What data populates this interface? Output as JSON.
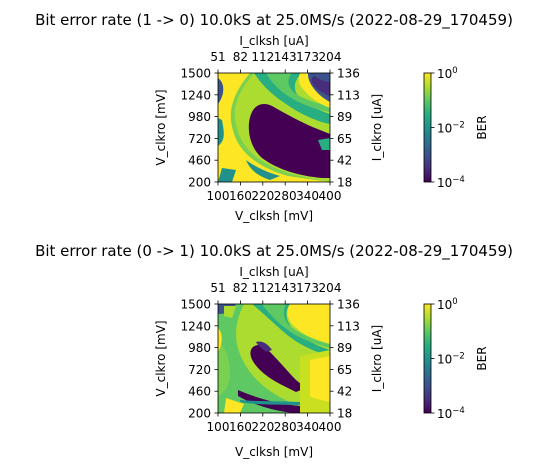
{
  "chart_data": [
    {
      "type": "heatmap",
      "title": "Bit error rate (1 -> 0) 10.0kS at 25.0MS/s (2022-08-29_170459)",
      "xlabel": "V_clksh [mV]",
      "ylabel": "V_clkro [mV]",
      "x2label": "I_clksh [uA]",
      "y2label": "I_clkro [uA]",
      "x_ticks": [
        "100",
        "160",
        "220",
        "280",
        "340",
        "400"
      ],
      "x2_ticks": [
        "51",
        "82",
        "112",
        "143",
        "173",
        "204"
      ],
      "y_ticks": [
        "200",
        "460",
        "720",
        "980",
        "1240",
        "1500"
      ],
      "y2_ticks": [
        "18",
        "42",
        "65",
        "89",
        "113",
        "136"
      ],
      "xlim": [
        100,
        400
      ],
      "ylim": [
        200,
        1500
      ],
      "colorbar": {
        "label": "BER",
        "scale": "log",
        "range": [
          0.0001,
          1
        ],
        "ticks": [
          {
            "base": "10",
            "exp": "0",
            "value": 1
          },
          {
            "base": "10",
            "exp": "−2",
            "value": 0.01
          },
          {
            "base": "10",
            "exp": "−4",
            "value": 0.0001
          }
        ]
      },
      "colormap": "viridis"
    },
    {
      "type": "heatmap",
      "title": "Bit error rate (0 -> 1) 10.0kS at 25.0MS/s (2022-08-29_170459)",
      "xlabel": "V_clksh [mV]",
      "ylabel": "V_clkro [mV]",
      "x2label": "I_clksh [uA]",
      "y2label": "I_clkro [uA]",
      "x_ticks": [
        "100",
        "160",
        "220",
        "280",
        "340",
        "400"
      ],
      "x2_ticks": [
        "51",
        "82",
        "112",
        "143",
        "173",
        "204"
      ],
      "y_ticks": [
        "200",
        "460",
        "720",
        "980",
        "1240",
        "1500"
      ],
      "y2_ticks": [
        "18",
        "42",
        "65",
        "89",
        "113",
        "136"
      ],
      "xlim": [
        100,
        400
      ],
      "ylim": [
        200,
        1500
      ],
      "colorbar": {
        "label": "BER",
        "scale": "log",
        "range": [
          0.0001,
          1
        ],
        "ticks": [
          {
            "base": "10",
            "exp": "0",
            "value": 1
          },
          {
            "base": "10",
            "exp": "−2",
            "value": 0.01
          },
          {
            "base": "10",
            "exp": "−4",
            "value": 0.0001
          }
        ]
      },
      "colormap": "viridis"
    }
  ]
}
